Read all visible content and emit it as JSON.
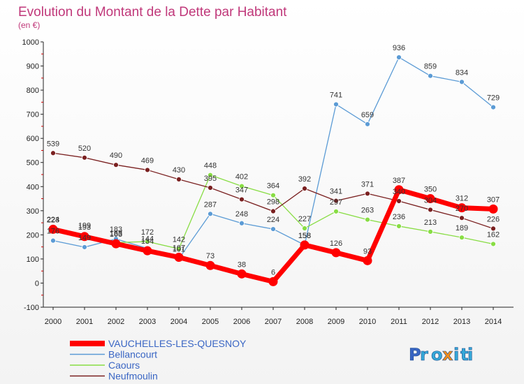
{
  "chart_data": {
    "type": "line",
    "title": "Evolution du Montant de la Dette par Habitant",
    "subtitle": "(en €)",
    "x": [
      "2000",
      "2001",
      "2002",
      "2003",
      "2004",
      "2005",
      "2006",
      "2007",
      "2008",
      "2009",
      "2010",
      "2011",
      "2012",
      "2013",
      "2014"
    ],
    "yticks": [
      "-100",
      "0",
      "100",
      "200",
      "300",
      "400",
      "500",
      "600",
      "700",
      "800",
      "900",
      "1000"
    ],
    "ylim": [
      -100,
      1000
    ],
    "grid": false,
    "legend_position": "bottom-left",
    "series": [
      {
        "name": "VAUCHELLES-LES-QUESNOY",
        "color": "#ff0000",
        "values": [
          223,
          193,
          163,
          134,
          107,
          73,
          38,
          6,
          158,
          126,
          93,
          387,
          350,
          312,
          307
        ],
        "labels": [
          "223",
          "193",
          "163",
          "134",
          "107",
          "73",
          "38",
          "6",
          "158",
          "126",
          "93",
          "387",
          "350",
          "312",
          "307"
        ]
      },
      {
        "name": "Bellancourt",
        "color": "#5b9bd5",
        "values": [
          176,
          149,
          183,
          144,
          101,
          287,
          248,
          224,
          158,
          741,
          659,
          936,
          859,
          834,
          729
        ],
        "labels": [
          "176",
          "149",
          "183",
          "144",
          "101",
          "287",
          "248",
          "224",
          "158",
          "741",
          "659",
          "936",
          "859",
          "834",
          "729"
        ]
      },
      {
        "name": "Caours",
        "color": "#88dd44",
        "values": [
          224,
          199,
          168,
          172,
          142,
          448,
          402,
          364,
          227,
          297,
          263,
          236,
          213,
          189,
          162
        ],
        "labels": [
          "224",
          "199",
          "168",
          "172",
          "142",
          "448",
          "402",
          "364",
          "227",
          "297",
          "263",
          "236",
          "213",
          "189",
          "162"
        ]
      },
      {
        "name": "Neufmoulin",
        "color": "#7a2020",
        "values": [
          539,
          520,
          490,
          469,
          430,
          395,
          347,
          298,
          392,
          341,
          371,
          340,
          304,
          270,
          226
        ],
        "labels": [
          "539",
          "520",
          "490",
          "469",
          "430",
          "395",
          "347",
          "298",
          "392",
          "341",
          "371",
          "340",
          "304",
          "270",
          "226"
        ]
      }
    ]
  },
  "brand": {
    "text": "Proxiti"
  }
}
